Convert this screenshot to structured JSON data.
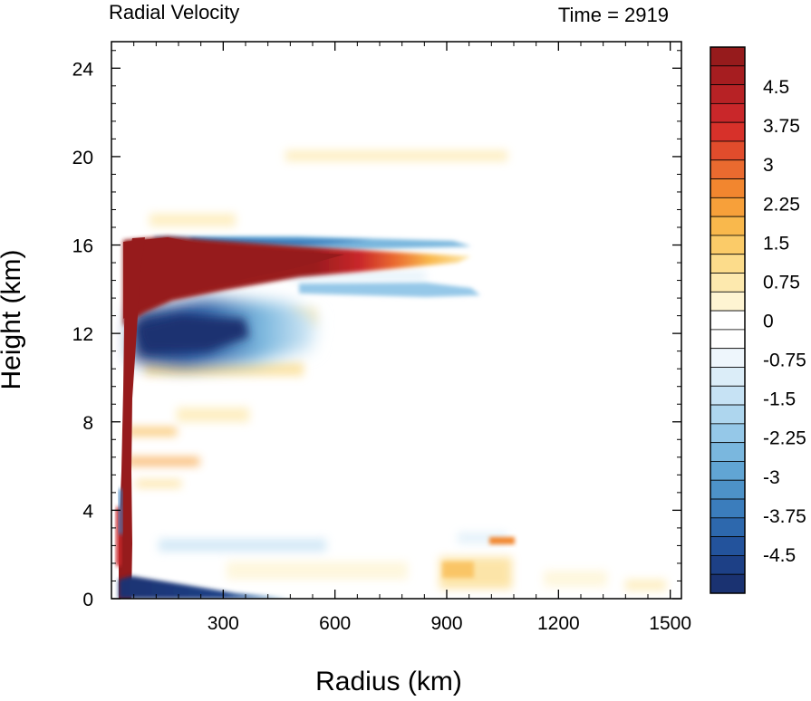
{
  "chart_data": {
    "type": "heatmap",
    "title_left": "Radial Velocity",
    "title_right": "Time = 2919",
    "xlabel": "Radius (km)",
    "ylabel": "Height (km)",
    "xlim": [
      0,
      1530
    ],
    "ylim": [
      0,
      25.2
    ],
    "xticks": [
      300,
      600,
      900,
      1200,
      1500
    ],
    "yticks": [
      0,
      4,
      8,
      12,
      16,
      20,
      24
    ],
    "x_tick_labels": [
      "300",
      "600",
      "900",
      "1200",
      "1500"
    ],
    "y_tick_labels": [
      "0",
      "4",
      "8",
      "12",
      "16",
      "20",
      "24"
    ],
    "colorbar": {
      "levels": [
        -5.25,
        -4.875,
        -4.5,
        -4.125,
        -3.75,
        -3.375,
        -3,
        -2.625,
        -2.25,
        -1.875,
        -1.5,
        -1.125,
        -0.75,
        -0.375,
        0,
        0.375,
        0.75,
        1.125,
        1.5,
        1.875,
        2.25,
        2.625,
        3,
        3.375,
        3.75,
        4.125,
        4.5,
        4.875,
        5.25
      ],
      "labels": [
        "4.5",
        "3.75",
        "3",
        "2.25",
        "1.5",
        "0.75",
        "0",
        "-0.75",
        "-1.5",
        "-2.25",
        "-3",
        "-3.75",
        "-4.5"
      ],
      "label_values": [
        4.5,
        3.75,
        3,
        2.25,
        1.5,
        0.75,
        0,
        -0.75,
        -1.5,
        -2.25,
        -3,
        -3.75,
        -4.5
      ],
      "colors_top_to_bottom": [
        "#961b1c",
        "#a61d20",
        "#b72225",
        "#c9272a",
        "#d7312a",
        "#e14c2c",
        "#ea6a2f",
        "#f2862f",
        "#f7a03a",
        "#f9b84c",
        "#fbcb68",
        "#fcdc8b",
        "#fde9ae",
        "#fef4d2",
        "#ffffff",
        "#ffffff",
        "#eef6fc",
        "#dbedf8",
        "#c6e2f4",
        "#aed6ee",
        "#95c8e8",
        "#7ab7de",
        "#61a5d4",
        "#4d92c8",
        "#3b7dbc",
        "#2d68ad",
        "#23539c",
        "#1d4086",
        "#1a3271"
      ]
    },
    "features": [
      {
        "name": "outflow_jet",
        "sign": "positive",
        "peak": 5.0,
        "x_range": [
          30,
          980
        ],
        "z_center": 15.2
      },
      {
        "name": "eyewall_updraft_column",
        "sign": "positive",
        "peak": 5.0,
        "x_range": [
          30,
          150
        ],
        "z_range": [
          0.5,
          16.4
        ]
      },
      {
        "name": "upper_inflow",
        "sign": "negative",
        "peak": -4.5,
        "x_range": [
          120,
          550
        ],
        "z_center": 11.8
      },
      {
        "name": "boundary_layer_inflow",
        "sign": "negative",
        "peak": -5.0,
        "x_range": [
          30,
          320
        ],
        "z_range": [
          0,
          1.0
        ]
      },
      {
        "name": "upper_return_flow",
        "sign": "negative",
        "peak": -2.5,
        "x_range": [
          180,
          520
        ],
        "z_center": 16.3
      }
    ]
  }
}
